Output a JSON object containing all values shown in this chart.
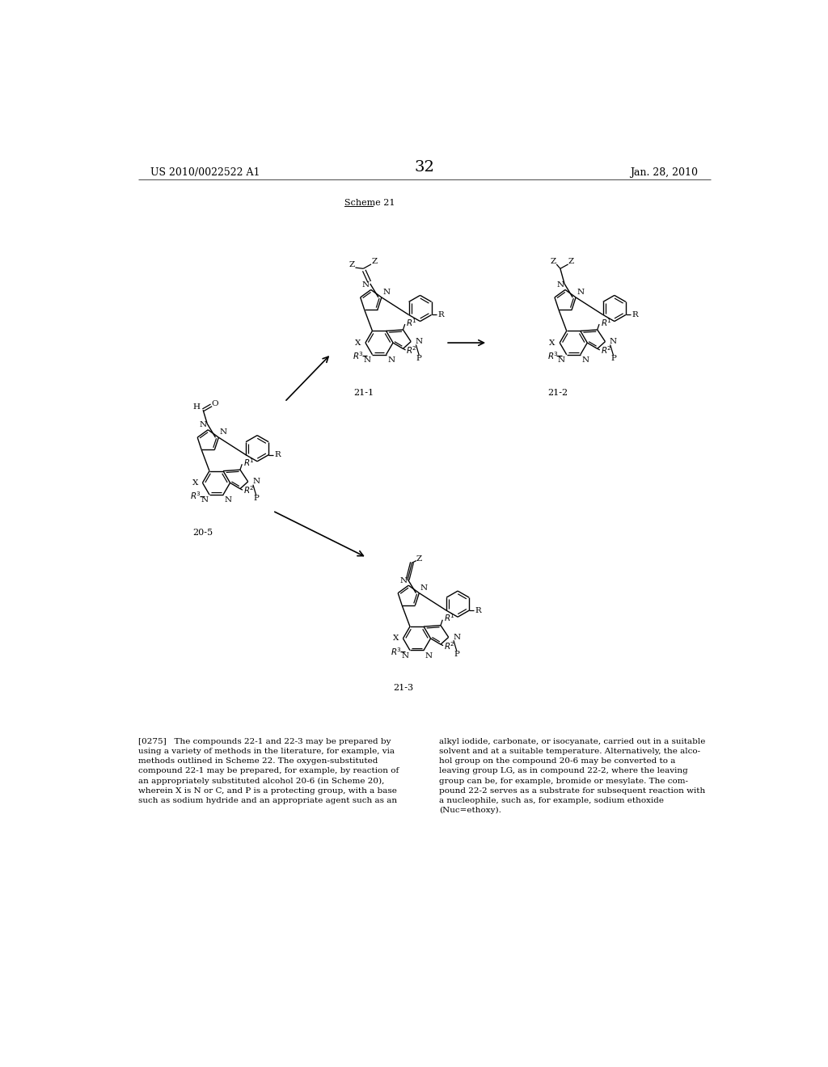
{
  "page_number": "32",
  "header_left": "US 2010/0022522 A1",
  "header_right": "Jan. 28, 2010",
  "scheme_label": "Scheme 21",
  "compound_21_1": "21-1",
  "compound_21_2": "21-2",
  "compound_20_5": "20-5",
  "compound_21_3": "21-3",
  "paragraph_text_left": "[0275]   The compounds 22-1 and 22-3 may be prepared by\nusing a variety of methods in the literature, for example, via\nmethods outlined in Scheme 22. The oxygen-substituted\ncompound 22-1 may be prepared, for example, by reaction of\nan appropriately substituted alcohol 20-6 (in Scheme 20),\nwherein X is N or C, and P is a protecting group, with a base\nsuch as sodium hydride and an appropriate agent such as an",
  "paragraph_text_right": "alkyl iodide, carbonate, or isocyanate, carried out in a suitable\nsolvent and at a suitable temperature. Alternatively, the alco-\nhol group on the compound 20-6 may be converted to a\nleaving group LG, as in compound 22-2, where the leaving\ngroup can be, for example, bromide or mesylate. The com-\npound 22-2 serves as a substrate for subsequent reaction with\na nucleophile, such as, for example, sodium ethoxide\n(Nuc=ethoxy).",
  "bg_color": "#ffffff"
}
